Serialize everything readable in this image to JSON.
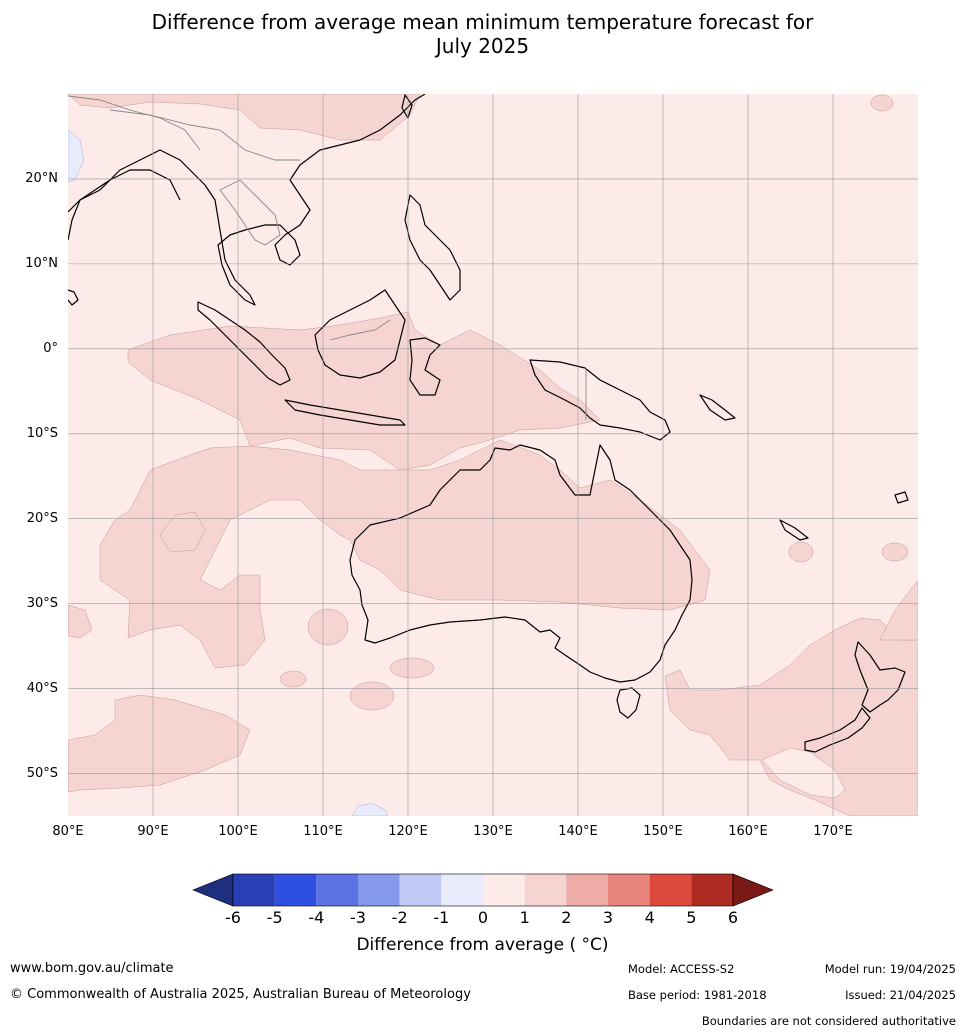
{
  "title": {
    "line1": "Difference from average mean minimum temperature forecast for",
    "line2": "July 2025"
  },
  "map": {
    "lat_labels": [
      "20°N",
      "10°N",
      "0°",
      "10°S",
      "20°S",
      "30°S",
      "40°S",
      "50°S"
    ],
    "lon_labels": [
      "80°E",
      "90°E",
      "100°E",
      "110°E",
      "120°E",
      "130°E",
      "140°E",
      "150°E",
      "160°E",
      "170°E"
    ],
    "lon_range": [
      80,
      180
    ],
    "lat_range": [
      -55,
      30
    ],
    "colors": {
      "land_border": "#000000",
      "grid": "#9a9a9a",
      "background_anomaly": "#fcebe9"
    }
  },
  "colorbar": {
    "ticks": [
      "-6",
      "-5",
      "-4",
      "-3",
      "-2",
      "-1",
      "0",
      "1",
      "2",
      "3",
      "4",
      "5",
      "6"
    ],
    "colors": [
      "#1f2f80",
      "#2a3fb5",
      "#2f4fe0",
      "#5a72e4",
      "#8599ec",
      "#c0c8f4",
      "#e8ebfb",
      "#fcebe9",
      "#f5d4d1",
      "#eeaca6",
      "#e8847c",
      "#db4a3d",
      "#ac2c22",
      "#7a1a16"
    ],
    "label": "Difference from average ( °C)"
  },
  "footer": {
    "website": "www.bom.gov.au/climate",
    "copyright": "© Commonwealth of Australia 2025, Australian Bureau of Meteorology",
    "model": "Model: ACCESS-S2",
    "base_period": "Base period: 1981-2018",
    "model_run": "Model run: 19/04/2025",
    "issued": "Issued: 21/04/2025",
    "disclaimer": "Boundaries are not considered authoritative"
  }
}
